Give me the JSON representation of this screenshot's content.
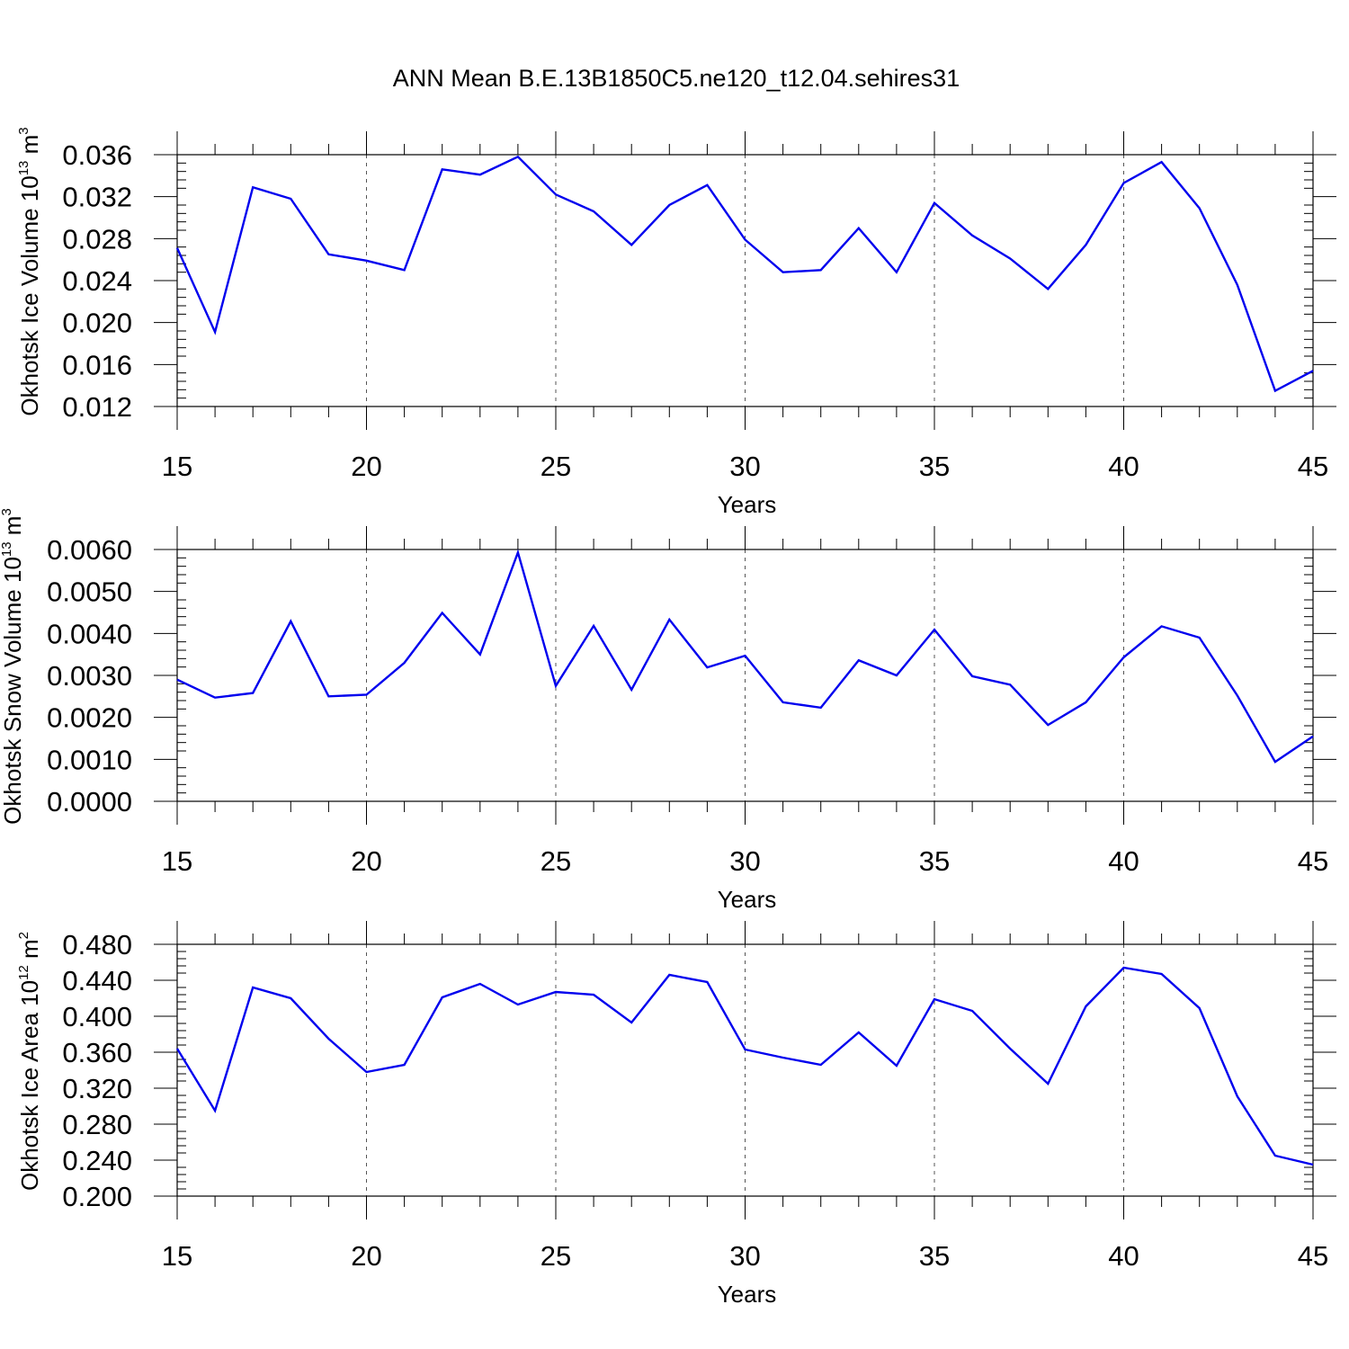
{
  "figure_title": "ANN Mean B.E.13B1850C5.ne120_t12.04.sehires31",
  "series_color": "#0000ee",
  "chart_data": [
    {
      "type": "line",
      "name": "ice-volume",
      "ylabel": "Okhotsk Ice Volume 10",
      "ylabel_exp": "13",
      "ylabel_unit": "m",
      "ylabel_unit_exp": "3",
      "xlabel": "Years",
      "xlim": [
        15,
        45
      ],
      "ylim": [
        0.012,
        0.036
      ],
      "xticks": [
        15,
        20,
        25,
        30,
        35,
        40,
        45
      ],
      "xtick_labels": [
        "15",
        "20",
        "25",
        "30",
        "35",
        "40",
        "45"
      ],
      "yticks": [
        0.012,
        0.016,
        0.02,
        0.024,
        0.028,
        0.032,
        0.036
      ],
      "ytick_labels": [
        "0.012",
        "0.016",
        "0.020",
        "0.024",
        "0.028",
        "0.032",
        "0.036"
      ],
      "x": [
        15,
        16,
        17,
        18,
        19,
        20,
        21,
        22,
        23,
        24,
        25,
        26,
        27,
        28,
        29,
        30,
        31,
        32,
        33,
        34,
        35,
        36,
        37,
        38,
        39,
        40,
        41,
        42,
        43,
        44,
        45
      ],
      "y": [
        0.0271,
        0.0191,
        0.0329,
        0.0318,
        0.0265,
        0.0259,
        0.025,
        0.0346,
        0.0341,
        0.0358,
        0.0322,
        0.0306,
        0.0274,
        0.0312,
        0.0331,
        0.0279,
        0.0248,
        0.025,
        0.029,
        0.0248,
        0.0314,
        0.0283,
        0.0261,
        0.0232,
        0.0274,
        0.0333,
        0.0353,
        0.0309,
        0.0236,
        0.0135,
        0.0154
      ]
    },
    {
      "type": "line",
      "name": "snow-volume",
      "ylabel": "Okhotsk Snow Volume 10",
      "ylabel_exp": "13",
      "ylabel_unit": "m",
      "ylabel_unit_exp": "3",
      "xlabel": "Years",
      "xlim": [
        15,
        45
      ],
      "ylim": [
        0.0,
        0.006
      ],
      "xticks": [
        15,
        20,
        25,
        30,
        35,
        40,
        45
      ],
      "xtick_labels": [
        "15",
        "20",
        "25",
        "30",
        "35",
        "40",
        "45"
      ],
      "yticks": [
        0.0,
        0.001,
        0.002,
        0.003,
        0.004,
        0.005,
        0.006
      ],
      "ytick_labels": [
        "0.0000",
        "0.0010",
        "0.0020",
        "0.0030",
        "0.0040",
        "0.0050",
        "0.0060"
      ],
      "x": [
        15,
        16,
        17,
        18,
        19,
        20,
        21,
        22,
        23,
        24,
        25,
        26,
        27,
        28,
        29,
        30,
        31,
        32,
        33,
        34,
        35,
        36,
        37,
        38,
        39,
        40,
        41,
        42,
        43,
        44,
        45
      ],
      "y": [
        0.0029,
        0.00247,
        0.00258,
        0.00429,
        0.0025,
        0.00254,
        0.0033,
        0.00449,
        0.0035,
        0.00593,
        0.00275,
        0.00418,
        0.00266,
        0.00433,
        0.00319,
        0.00347,
        0.00236,
        0.00223,
        0.00336,
        0.003,
        0.00409,
        0.00298,
        0.00278,
        0.00182,
        0.00236,
        0.00343,
        0.00417,
        0.0039,
        0.00252,
        0.00094,
        0.00155
      ]
    },
    {
      "type": "line",
      "name": "ice-area",
      "ylabel": "Okhotsk Ice Area 10",
      "ylabel_exp": "12",
      "ylabel_unit": "m",
      "ylabel_unit_exp": "2",
      "xlabel": "Years",
      "xlim": [
        15,
        45
      ],
      "ylim": [
        0.2,
        0.48
      ],
      "xticks": [
        15,
        20,
        25,
        30,
        35,
        40,
        45
      ],
      "xtick_labels": [
        "15",
        "20",
        "25",
        "30",
        "35",
        "40",
        "45"
      ],
      "yticks": [
        0.2,
        0.24,
        0.28,
        0.32,
        0.36,
        0.4,
        0.44,
        0.48
      ],
      "ytick_labels": [
        "0.200",
        "0.240",
        "0.280",
        "0.320",
        "0.360",
        "0.400",
        "0.440",
        "0.480"
      ],
      "x": [
        15,
        16,
        17,
        18,
        19,
        20,
        21,
        22,
        23,
        24,
        25,
        26,
        27,
        28,
        29,
        30,
        31,
        32,
        33,
        34,
        35,
        36,
        37,
        38,
        39,
        40,
        41,
        42,
        43,
        44,
        45
      ],
      "y": [
        0.364,
        0.295,
        0.432,
        0.42,
        0.375,
        0.338,
        0.346,
        0.421,
        0.436,
        0.413,
        0.427,
        0.424,
        0.393,
        0.446,
        0.438,
        0.363,
        0.354,
        0.346,
        0.382,
        0.345,
        0.419,
        0.406,
        0.364,
        0.325,
        0.411,
        0.454,
        0.447,
        0.409,
        0.311,
        0.245,
        0.235
      ]
    }
  ]
}
